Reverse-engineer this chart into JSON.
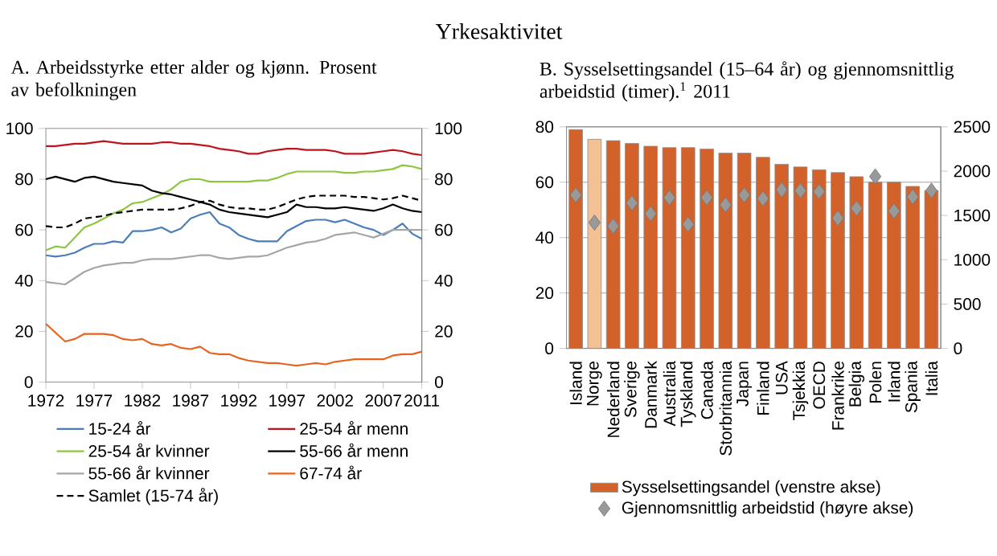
{
  "chart_data": [
    {
      "type": "line",
      "title": "Yrkesaktivitet",
      "subtitle": "A. Arbeidsstyrke etter alder og kjønn. Prosent av befolkningen",
      "x": [
        1972,
        1973,
        1974,
        1975,
        1976,
        1977,
        1978,
        1979,
        1980,
        1981,
        1982,
        1983,
        1984,
        1985,
        1986,
        1987,
        1988,
        1989,
        1990,
        1991,
        1992,
        1993,
        1994,
        1995,
        1996,
        1997,
        1998,
        1999,
        2000,
        2001,
        2002,
        2003,
        2004,
        2005,
        2006,
        2007,
        2008,
        2009,
        2010,
        2011
      ],
      "xlim": [
        1972,
        2011
      ],
      "xticks": [
        1972,
        1977,
        1982,
        1987,
        1992,
        1997,
        2002,
        2007,
        2011
      ],
      "ylim": [
        0,
        100
      ],
      "yticks": [
        0,
        20,
        40,
        60,
        80,
        100
      ],
      "y2lim": [
        0,
        100
      ],
      "y2ticks": [
        0,
        20,
        40,
        60,
        80,
        100
      ],
      "legend": "bottom",
      "series": [
        {
          "name": "15-24 år",
          "color": "#4a7ebb",
          "values": [
            50,
            49.5,
            50,
            51,
            53,
            54.5,
            54.5,
            55.5,
            55,
            59.5,
            59.5,
            60,
            61,
            59,
            60.5,
            64.5,
            66,
            67,
            62.5,
            61,
            58,
            56.5,
            55.5,
            55.5,
            55.5,
            59.5,
            61.5,
            63.5,
            64,
            64,
            63,
            64,
            62.5,
            61,
            60,
            58,
            60,
            62.5,
            58.5,
            56.5
          ]
        },
        {
          "name": "25-54 år menn",
          "color": "#c0141c",
          "values": [
            93,
            93,
            93.5,
            94,
            94,
            94.5,
            95,
            94.5,
            94,
            94,
            94,
            94,
            94.5,
            94.5,
            94,
            94,
            93.5,
            93,
            92,
            91.5,
            91,
            90,
            90,
            91,
            91.5,
            92,
            92,
            91.5,
            91.5,
            91.5,
            91,
            90,
            90,
            90,
            90.5,
            91,
            91.5,
            91,
            90,
            89.5
          ]
        },
        {
          "name": "25-54 år kvinner",
          "color": "#8dc63f",
          "values": [
            52,
            53.5,
            53,
            57,
            61,
            62.5,
            64.5,
            66.5,
            68,
            70.5,
            71,
            72.5,
            74,
            76,
            79,
            80,
            80,
            79,
            79,
            79,
            79,
            79,
            79.5,
            79.5,
            80.5,
            82,
            83,
            83,
            83,
            83,
            83,
            82.5,
            82.5,
            83,
            83,
            83.5,
            84,
            85.5,
            85,
            84
          ]
        },
        {
          "name": "55-66 år menn",
          "color": "#000000",
          "values": [
            80,
            81,
            80,
            79,
            80.5,
            81,
            80,
            79,
            78.5,
            78,
            77.5,
            75.5,
            74.5,
            74,
            73,
            72,
            71,
            70,
            68,
            67,
            66.5,
            66,
            65.5,
            65,
            66,
            67,
            70,
            69,
            69,
            68.5,
            68.5,
            69,
            68.5,
            68,
            67.5,
            68.5,
            70,
            68.5,
            67.5,
            67
          ]
        },
        {
          "name": "55-66 år kvinner",
          "color": "#a6a6a6",
          "values": [
            39.5,
            39,
            38.5,
            41,
            43.5,
            45,
            46,
            46.5,
            47,
            47,
            48,
            48.5,
            48.5,
            48.5,
            49,
            49.5,
            50,
            50,
            49,
            48.5,
            49,
            49.5,
            49.5,
            50,
            51.5,
            53,
            54,
            55,
            55.5,
            56.5,
            58,
            58.5,
            59,
            58,
            57,
            58.5,
            60,
            60,
            60,
            60
          ]
        },
        {
          "name": "67-74 år",
          "color": "#e8641e",
          "values": [
            23,
            19.5,
            16,
            17,
            19,
            19,
            19,
            18.5,
            17,
            16.5,
            17,
            15,
            14.5,
            15,
            13.5,
            13,
            14,
            11.5,
            11,
            11,
            9.5,
            8.5,
            8,
            7.5,
            7.5,
            7,
            6.5,
            7,
            7.5,
            7,
            8,
            8.5,
            9,
            9,
            9,
            9,
            10.5,
            11,
            11,
            12
          ]
        },
        {
          "name": "Samlet (15-74 år)",
          "color": "#000000",
          "line_style": "dashed",
          "values": [
            61.5,
            61,
            61,
            62.5,
            64.5,
            65,
            65.5,
            66.5,
            67,
            67.5,
            68,
            68,
            68,
            68,
            68.5,
            69.5,
            71,
            71.5,
            70,
            69,
            68.5,
            68.5,
            68,
            68,
            69,
            70.5,
            72,
            73,
            73.5,
            73.5,
            73.5,
            73.5,
            73,
            73,
            72.5,
            72,
            72.5,
            73.5,
            72.5,
            71.5
          ]
        }
      ]
    },
    {
      "type": "bar",
      "title": "B. Sysselsettingsandel (15–64 år) og gjennomsnittlig arbeidstid (timer).$^{1}$ 2011",
      "categories": [
        "Island",
        "Norge",
        "Nederland",
        "Sverige",
        "Danmark",
        "Australia",
        "Tyskland",
        "Canada",
        "Storbritannia",
        "Japan",
        "Finland",
        "USA",
        "Tsjekkia",
        "OECD",
        "Frankrike",
        "Belgia",
        "Polen",
        "Irland",
        "Spania",
        "Italia"
      ],
      "ylim": [
        0,
        80
      ],
      "yticks": [
        0,
        20,
        40,
        60,
        80
      ],
      "y2lim": [
        0,
        2500
      ],
      "y2ticks": [
        0,
        500,
        1000,
        1500,
        2000,
        2500
      ],
      "grid": "y",
      "legend": "bottom",
      "series": [
        {
          "name": "Sysselsettingsandel (venstre akse)",
          "type": "bar",
          "color": "#d2622a",
          "colors": [
            "#d2622a",
            "#f4c095",
            "#d2622a",
            "#d2622a",
            "#d2622a",
            "#d2622a",
            "#d2622a",
            "#d2622a",
            "#d2622a",
            "#d2622a",
            "#d2622a",
            "#d2622a",
            "#d2622a",
            "#d2622a",
            "#d2622a",
            "#d2622a",
            "#d2622a",
            "#d2622a",
            "#d2622a",
            "#d2622a"
          ],
          "values": [
            79,
            75.5,
            75,
            74,
            73,
            72.5,
            72.5,
            72,
            70.5,
            70.5,
            69,
            66.5,
            65.5,
            64.5,
            63.5,
            62,
            60,
            60,
            58.5,
            57
          ]
        },
        {
          "name": "Gjennomsnittlig arbeidstid (høyre akse)",
          "type": "scatter",
          "axis": "y2",
          "marker": "diamond",
          "color": "#999999",
          "values": [
            1730,
            1420,
            1380,
            1640,
            1520,
            1700,
            1400,
            1700,
            1620,
            1730,
            1690,
            1790,
            1780,
            1770,
            1470,
            1580,
            1940,
            1550,
            1710,
            1780
          ]
        }
      ]
    }
  ]
}
